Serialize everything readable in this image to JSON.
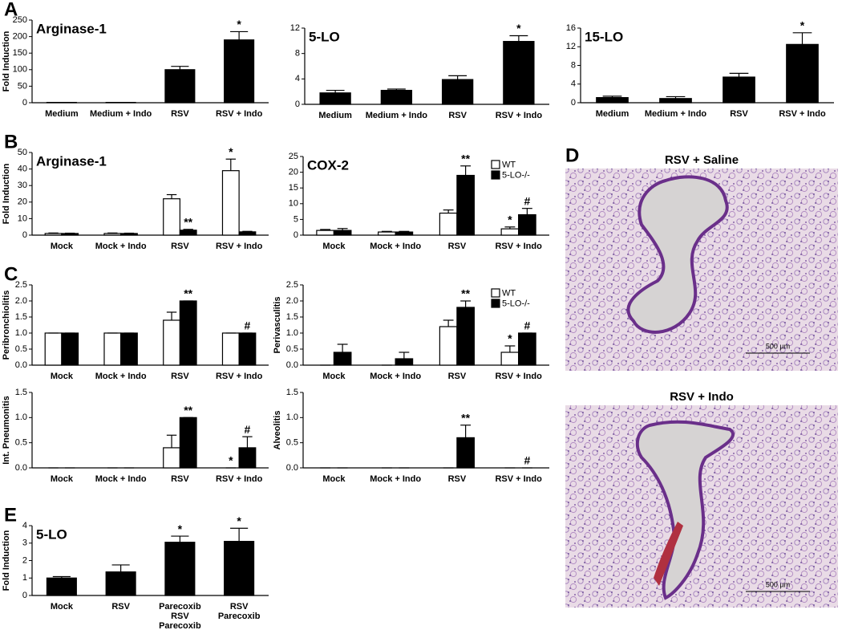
{
  "chart_data": [
    {
      "type": "bar",
      "panel": "A",
      "title": "Arginase-1",
      "ylabel": "Fold Induction",
      "categories": [
        "Medium",
        "Medium + Indo",
        "RSV",
        "RSV + Indo"
      ],
      "values": [
        1,
        1,
        100,
        190
      ],
      "errors": [
        0,
        0,
        10,
        25
      ],
      "annotations": [
        null,
        null,
        null,
        "*"
      ],
      "color": "#000000",
      "ylim": [
        0,
        250
      ],
      "yticks": [
        0,
        50,
        100,
        150,
        200,
        250
      ]
    },
    {
      "type": "bar",
      "title": "5-LO",
      "categories": [
        "Medium",
        "Medium + Indo",
        "RSV",
        "RSV + Indo"
      ],
      "values": [
        1.8,
        2.2,
        3.9,
        9.9
      ],
      "errors": [
        0.4,
        0.2,
        0.6,
        0.9
      ],
      "annotations": [
        null,
        null,
        null,
        "*"
      ],
      "color": "#000000",
      "ylim": [
        0,
        12
      ],
      "yticks": [
        0,
        4,
        8,
        12
      ]
    },
    {
      "type": "bar",
      "title": "15-LO",
      "categories": [
        "Medium",
        "Medium + Indo",
        "RSV",
        "RSV + Indo"
      ],
      "values": [
        1.1,
        0.9,
        5.5,
        12.5
      ],
      "errors": [
        0.3,
        0.4,
        0.8,
        2.5
      ],
      "annotations": [
        null,
        null,
        null,
        "*"
      ],
      "color": "#000000",
      "ylim": [
        0,
        16
      ],
      "yticks": [
        0,
        4,
        8,
        12,
        16
      ]
    },
    {
      "type": "bar",
      "panel": "B",
      "title": "Arginase-1",
      "ylabel": "Fold Induction",
      "categories": [
        "Mock",
        "Mock + Indo",
        "RSV",
        "RSV + Indo"
      ],
      "series": [
        {
          "color": "#ffffff",
          "values": [
            1,
            1,
            22,
            39
          ],
          "errors": [
            0.3,
            0.3,
            2.5,
            7
          ],
          "annotations": [
            null,
            null,
            null,
            "*"
          ]
        },
        {
          "color": "#000000",
          "values": [
            1,
            1,
            3,
            2
          ],
          "errors": [
            0.2,
            0.2,
            0.5,
            0.3
          ],
          "annotations": [
            null,
            null,
            "**",
            null
          ]
        }
      ],
      "ylim": [
        0,
        50
      ],
      "yticks": [
        0,
        10,
        20,
        30,
        40,
        50
      ]
    },
    {
      "type": "bar",
      "title": "COX-2",
      "legend": "top-right",
      "categories": [
        "Mock",
        "Mock + Indo",
        "RSV",
        "RSV + Indo"
      ],
      "series": [
        {
          "name": "WT",
          "color": "#ffffff",
          "values": [
            1.5,
            1,
            7,
            2
          ],
          "errors": [
            0.3,
            0.2,
            1,
            0.6
          ],
          "annotations": [
            null,
            null,
            null,
            "*"
          ]
        },
        {
          "name": "5-LO-/-",
          "color": "#000000",
          "values": [
            1.5,
            1,
            19,
            6.5
          ],
          "errors": [
            0.6,
            0.2,
            3,
            2
          ],
          "annotations": [
            null,
            null,
            "**",
            "#"
          ]
        }
      ],
      "ylim": [
        0,
        25
      ],
      "yticks": [
        0,
        5,
        10,
        15,
        20,
        25
      ]
    },
    {
      "type": "bar",
      "panel": "C",
      "ylabel": "Peribronchiolitis",
      "categories": [
        "Mock",
        "Mock + Indo",
        "RSV",
        "RSV + Indo"
      ],
      "series": [
        {
          "color": "#ffffff",
          "values": [
            1,
            1,
            1.4,
            1
          ],
          "errors": [
            0,
            0,
            0.25,
            0
          ],
          "annotations": [
            null,
            null,
            null,
            null
          ]
        },
        {
          "color": "#000000",
          "values": [
            1,
            1,
            2,
            1
          ],
          "errors": [
            0,
            0,
            0,
            0
          ],
          "annotations": [
            null,
            null,
            "**",
            "#"
          ]
        }
      ],
      "ylim": [
        0,
        2.5
      ],
      "yticks": [
        {
          "value": 0,
          "label": "0.0"
        },
        0.5,
        {
          "value": 1,
          "label": "1.0"
        },
        1.5,
        {
          "value": 2,
          "label": "2.0"
        },
        2.5
      ]
    },
    {
      "type": "bar",
      "ylabel": "Perivasculitis",
      "legend": "top-right",
      "categories": [
        "Mock",
        "Mock + Indo",
        "RSV",
        "RSV + Indo"
      ],
      "series": [
        {
          "name": "WT",
          "color": "#ffffff",
          "values": [
            0,
            0,
            1.2,
            0.4
          ],
          "errors": [
            0,
            0,
            0.2,
            0.2
          ],
          "annotations": [
            null,
            null,
            null,
            "*"
          ]
        },
        {
          "name": "5-LO-/-",
          "color": "#000000",
          "values": [
            0.4,
            0.2,
            1.8,
            1
          ],
          "errors": [
            0.25,
            0.2,
            0.2,
            0
          ],
          "annotations": [
            null,
            null,
            "**",
            "#"
          ]
        }
      ],
      "ylim": [
        0,
        2.5
      ],
      "yticks": [
        {
          "value": 0,
          "label": "0.0"
        },
        0.5,
        {
          "value": 1,
          "label": "1.0"
        },
        1.5,
        {
          "value": 2,
          "label": "2.0"
        },
        2.5
      ]
    },
    {
      "type": "bar",
      "ylabel": "Int. Pneumonitis",
      "categories": [
        "Mock",
        "Mock + Indo",
        "RSV",
        "RSV + Indo"
      ],
      "series": [
        {
          "color": "#ffffff",
          "values": [
            0,
            0,
            0.4,
            0
          ],
          "errors": [
            0,
            0,
            0.25,
            0
          ],
          "annotations": [
            null,
            null,
            null,
            "*"
          ]
        },
        {
          "color": "#000000",
          "values": [
            0,
            0,
            1,
            0.4
          ],
          "errors": [
            0,
            0,
            0,
            0.22
          ],
          "annotations": [
            null,
            null,
            "**",
            "#"
          ]
        }
      ],
      "ylim": [
        0,
        1.5
      ],
      "yticks": [
        {
          "value": 0,
          "label": "0.0"
        },
        0.5,
        {
          "value": 1,
          "label": "1.0"
        },
        1.5
      ]
    },
    {
      "type": "bar",
      "ylabel": "Alveolitis",
      "categories": [
        "Mock",
        "Mock + Indo",
        "RSV",
        "RSV + Indo"
      ],
      "series": [
        {
          "color": "#ffffff",
          "values": [
            0,
            0,
            0,
            0
          ],
          "errors": [
            0,
            0,
            0,
            0
          ],
          "annotations": [
            null,
            null,
            null,
            null
          ]
        },
        {
          "color": "#000000",
          "values": [
            0,
            0,
            0.6,
            0
          ],
          "errors": [
            0,
            0,
            0.25,
            0
          ],
          "annotations": [
            null,
            null,
            "**",
            "#"
          ]
        }
      ],
      "ylim": [
        0,
        1.5
      ],
      "yticks": [
        {
          "value": 0,
          "label": "0.0"
        },
        0.5,
        {
          "value": 1,
          "label": "1.0"
        },
        1.5
      ]
    },
    {
      "type": "bar",
      "panel": "E",
      "title": "5-LO",
      "ylabel": "Fold Induction",
      "categories": [
        "Mock",
        "RSV",
        [
          "Parecoxib",
          "RSV",
          "Parecoxib"
        ],
        [
          "RSV",
          "Parecoxib"
        ]
      ],
      "values": [
        1,
        1.35,
        3.05,
        3.1
      ],
      "errors": [
        0.08,
        0.4,
        0.35,
        0.75
      ],
      "annotations": [
        null,
        null,
        "*",
        "*"
      ],
      "color": "#000000",
      "ylim": [
        0,
        4
      ],
      "yticks": [
        0,
        1,
        2,
        3,
        4
      ]
    }
  ],
  "figure_d": {
    "panel": "D",
    "images": [
      {
        "title": "RSV + Saline",
        "scale_bar": "500 µm"
      },
      {
        "title": "RSV + Indo",
        "scale_bar": "500 µm"
      }
    ]
  }
}
